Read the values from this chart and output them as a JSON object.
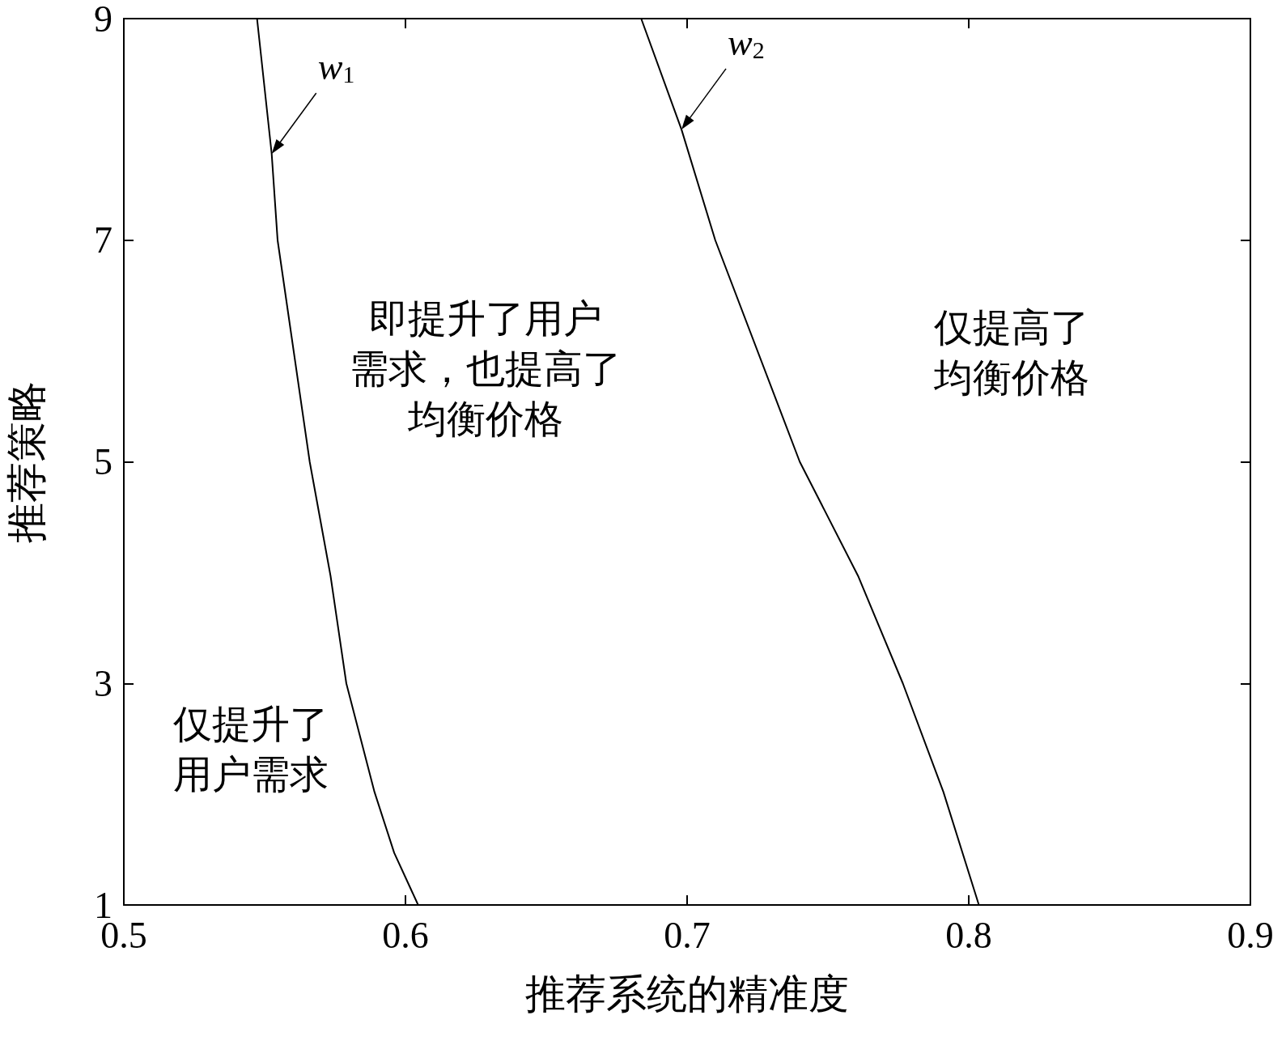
{
  "chart_data": {
    "type": "line",
    "xlabel": "推荐系统的精准度",
    "ylabel": "推荐策略",
    "xlim": [
      0.5,
      0.9
    ],
    "xticks": [
      0.5,
      0.6,
      0.7,
      0.8,
      0.9
    ],
    "ylim": [
      1,
      9
    ],
    "yticks": [
      1,
      3,
      5,
      7,
      9
    ],
    "grid": false,
    "marker": "none",
    "line_style": "solid",
    "series": [
      {
        "color": "#000000",
        "x": [
          0.5473,
          0.5525,
          0.5546,
          0.566,
          0.5734,
          0.579,
          0.589,
          0.596,
          0.6045
        ],
        "values": [
          9,
          7.78,
          7,
          5,
          3.97,
          3,
          2.02,
          1.47,
          1
        ]
      },
      {
        "color": "#000000",
        "x": [
          0.6837,
          0.698,
          0.71,
          0.74,
          0.7607,
          0.7766,
          0.791,
          0.8036
        ],
        "values": [
          9,
          8,
          7,
          5,
          3.97,
          3,
          2.02,
          1
        ]
      }
    ],
    "annotations": [
      {
        "text": "w$_{1}$",
        "x": 0.5525,
        "y": 7.78
      },
      {
        "text": "w$_{2}$",
        "x": 0.698,
        "y": 8
      },
      "即提升了用户需求，也提高了均衡价格",
      "仅提高了均衡价格",
      "仅提升了用户需求"
    ]
  }
}
